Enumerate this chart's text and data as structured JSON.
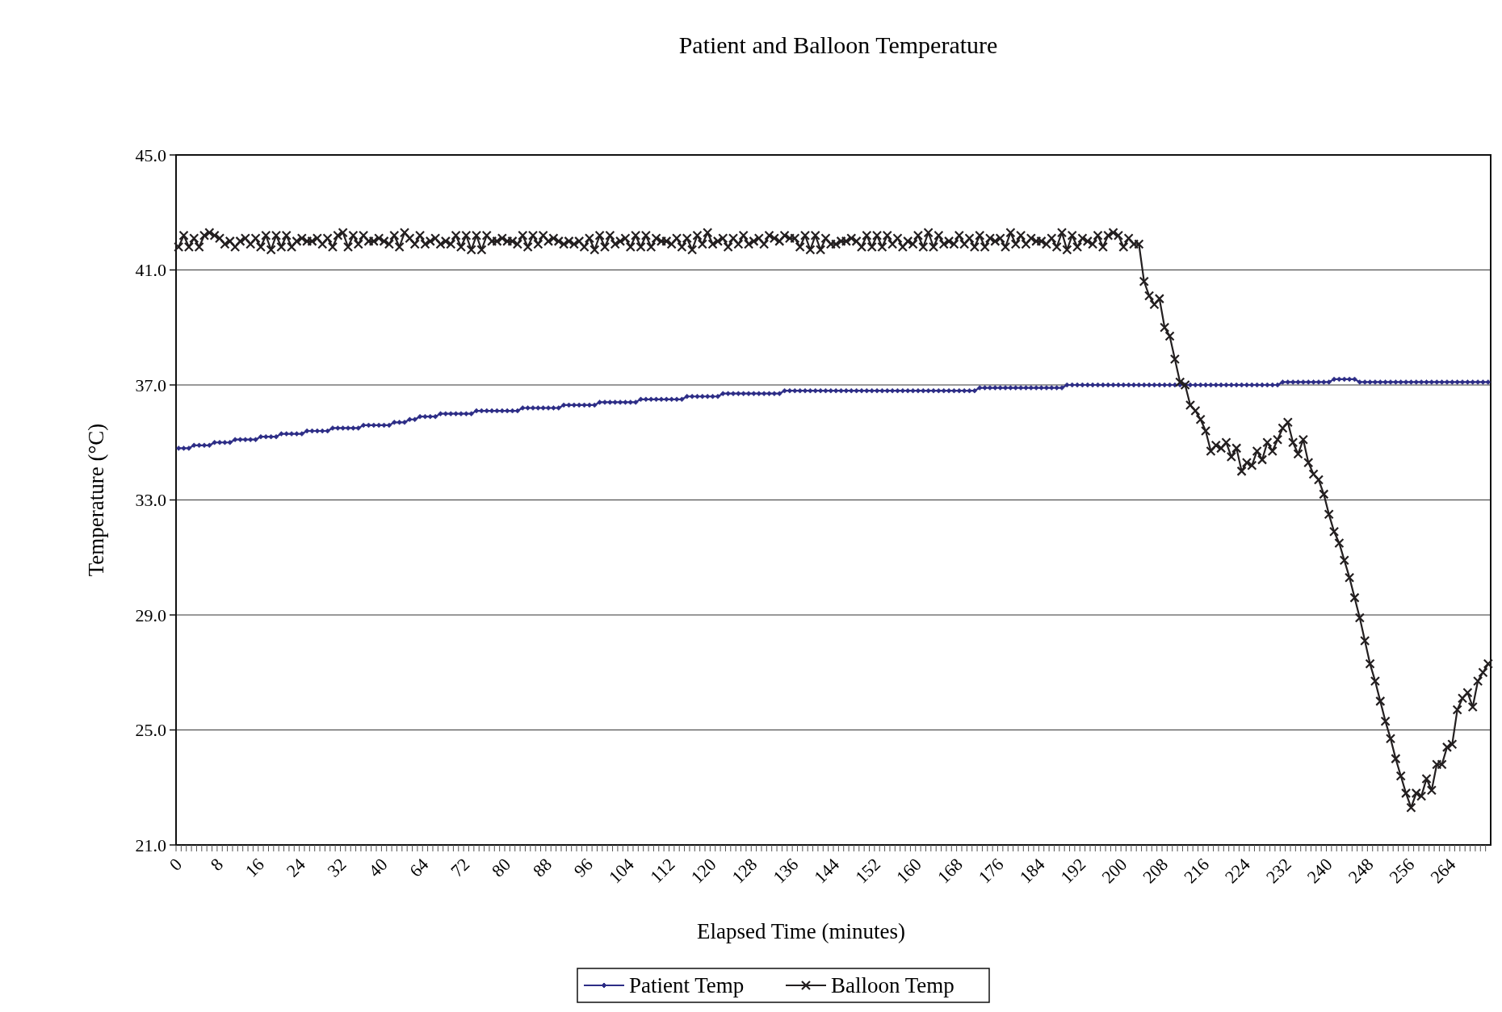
{
  "chart_data": {
    "type": "line",
    "title": "Patient and Balloon Temperature",
    "xlabel": "Elapsed Time (minutes)",
    "ylabel": "Temperature (°C)",
    "categories": [
      "0",
      null,
      null,
      null,
      null,
      null,
      null,
      null,
      "8",
      null,
      null,
      null,
      null,
      null,
      null,
      null,
      "16",
      null,
      null,
      null,
      null,
      null,
      null,
      null,
      "24",
      null,
      null,
      null,
      null,
      null,
      null,
      null,
      "32",
      null,
      null,
      null,
      null,
      null,
      null,
      null,
      "40",
      null,
      null,
      null,
      null,
      null,
      null,
      null,
      "64",
      null,
      null,
      null,
      null,
      null,
      null,
      null,
      "72",
      null,
      null,
      null,
      null,
      null,
      null,
      null,
      "80",
      null,
      null,
      null,
      null,
      null,
      null,
      null,
      "88",
      null,
      null,
      null,
      null,
      null,
      null,
      null,
      "96",
      null,
      null,
      null,
      null,
      null,
      null,
      null,
      "104",
      null,
      null,
      null,
      null,
      null,
      null,
      null,
      "112",
      null,
      null,
      null,
      null,
      null,
      null,
      null,
      "120",
      null,
      null,
      null,
      null,
      null,
      null,
      null,
      "128",
      null,
      null,
      null,
      null,
      null,
      null,
      null,
      "136",
      null,
      null,
      null,
      null,
      null,
      null,
      null,
      "144",
      null,
      null,
      null,
      null,
      null,
      null,
      null,
      "152",
      null,
      null,
      null,
      null,
      null,
      null,
      null,
      "160",
      null,
      null,
      null,
      null,
      null,
      null,
      null,
      "168",
      null,
      null,
      null,
      null,
      null,
      null,
      null,
      "176",
      null,
      null,
      null,
      null,
      null,
      null,
      null,
      "184",
      null,
      null,
      null,
      null,
      null,
      null,
      null,
      "192",
      null,
      null,
      null,
      null,
      null,
      null,
      null,
      "200",
      null,
      null,
      null,
      null,
      null,
      null,
      null,
      "208",
      null,
      null,
      null,
      null,
      null,
      null,
      null,
      "216",
      null,
      null,
      null,
      null,
      null,
      null,
      null,
      "224",
      null,
      null,
      null,
      null,
      null,
      null,
      null,
      "232",
      null,
      null,
      null,
      null,
      null,
      null,
      null,
      "240",
      null,
      null,
      null,
      null,
      null,
      null,
      null,
      "248",
      null,
      null,
      null,
      null,
      null,
      null,
      null,
      "256",
      null,
      null,
      null,
      null,
      null,
      null,
      null,
      "264",
      null,
      null,
      null,
      null,
      null,
      null,
      null
    ],
    "series": [
      {
        "name": "Patient Temp",
        "color": "#2d2d86",
        "marker": "diamond",
        "values": [
          34.8,
          34.8,
          34.8,
          34.9,
          34.9,
          34.9,
          34.9,
          35.0,
          35.0,
          35.0,
          35.0,
          35.1,
          35.1,
          35.1,
          35.1,
          35.1,
          35.2,
          35.2,
          35.2,
          35.2,
          35.3,
          35.3,
          35.3,
          35.3,
          35.3,
          35.4,
          35.4,
          35.4,
          35.4,
          35.4,
          35.5,
          35.5,
          35.5,
          35.5,
          35.5,
          35.5,
          35.6,
          35.6,
          35.6,
          35.6,
          35.6,
          35.6,
          35.7,
          35.7,
          35.7,
          35.8,
          35.8,
          35.9,
          35.9,
          35.9,
          35.9,
          36.0,
          36.0,
          36.0,
          36.0,
          36.0,
          36.0,
          36.0,
          36.1,
          36.1,
          36.1,
          36.1,
          36.1,
          36.1,
          36.1,
          36.1,
          36.1,
          36.2,
          36.2,
          36.2,
          36.2,
          36.2,
          36.2,
          36.2,
          36.2,
          36.3,
          36.3,
          36.3,
          36.3,
          36.3,
          36.3,
          36.3,
          36.4,
          36.4,
          36.4,
          36.4,
          36.4,
          36.4,
          36.4,
          36.4,
          36.5,
          36.5,
          36.5,
          36.5,
          36.5,
          36.5,
          36.5,
          36.5,
          36.5,
          36.6,
          36.6,
          36.6,
          36.6,
          36.6,
          36.6,
          36.6,
          36.7,
          36.7,
          36.7,
          36.7,
          36.7,
          36.7,
          36.7,
          36.7,
          36.7,
          36.7,
          36.7,
          36.7,
          36.8,
          36.8,
          36.8,
          36.8,
          36.8,
          36.8,
          36.8,
          36.8,
          36.8,
          36.8,
          36.8,
          36.8,
          36.8,
          36.8,
          36.8,
          36.8,
          36.8,
          36.8,
          36.8,
          36.8,
          36.8,
          36.8,
          36.8,
          36.8,
          36.8,
          36.8,
          36.8,
          36.8,
          36.8,
          36.8,
          36.8,
          36.8,
          36.8,
          36.8,
          36.8,
          36.8,
          36.8,
          36.8,
          36.9,
          36.9,
          36.9,
          36.9,
          36.9,
          36.9,
          36.9,
          36.9,
          36.9,
          36.9,
          36.9,
          36.9,
          36.9,
          36.9,
          36.9,
          36.9,
          36.9,
          37.0,
          37.0,
          37.0,
          37.0,
          37.0,
          37.0,
          37.0,
          37.0,
          37.0,
          37.0,
          37.0,
          37.0,
          37.0,
          37.0,
          37.0,
          37.0,
          37.0,
          37.0,
          37.0,
          37.0,
          37.0,
          37.0,
          37.0,
          37.0,
          37.0,
          37.0,
          37.0,
          37.0,
          37.0,
          37.0,
          37.0,
          37.0,
          37.0,
          37.0,
          37.0,
          37.0,
          37.0,
          37.0,
          37.0,
          37.0,
          37.0,
          37.0,
          37.1,
          37.1,
          37.1,
          37.1,
          37.1,
          37.1,
          37.1,
          37.1,
          37.1,
          37.1,
          37.2,
          37.2,
          37.2,
          37.2,
          37.2,
          37.1,
          37.1,
          37.1,
          37.1,
          37.1,
          37.1,
          37.1,
          37.1,
          37.1,
          37.1,
          37.1,
          37.1,
          37.1,
          37.1,
          37.1,
          37.1,
          37.1,
          37.1,
          37.1,
          37.1,
          37.1,
          37.1,
          37.1,
          37.1,
          37.1,
          37.1
        ]
      },
      {
        "name": "Balloon Temp",
        "color": "#231f20",
        "marker": "cross",
        "values": [
          41.8,
          42.2,
          41.8,
          42.1,
          41.8,
          42.2,
          42.3,
          42.2,
          42.1,
          41.9,
          42.0,
          41.8,
          42.0,
          42.1,
          41.9,
          42.1,
          41.8,
          42.2,
          41.7,
          42.2,
          41.8,
          42.2,
          41.8,
          42.0,
          42.1,
          42.0,
          42.0,
          42.1,
          41.9,
          42.1,
          41.8,
          42.2,
          42.3,
          41.8,
          42.2,
          41.9,
          42.2,
          42.0,
          42.0,
          42.1,
          42.0,
          41.9,
          42.2,
          41.8,
          42.3,
          42.1,
          41.9,
          42.2,
          41.9,
          42.0,
          42.1,
          41.9,
          42.0,
          41.9,
          42.2,
          41.8,
          42.2,
          41.7,
          42.2,
          41.7,
          42.2,
          42.0,
          42.0,
          42.1,
          42.0,
          42.0,
          41.9,
          42.2,
          41.8,
          42.2,
          41.9,
          42.2,
          42.0,
          42.1,
          42.0,
          41.9,
          42.0,
          41.9,
          42.0,
          41.8,
          42.1,
          41.7,
          42.2,
          41.8,
          42.2,
          41.9,
          42.0,
          42.1,
          41.8,
          42.2,
          41.8,
          42.2,
          41.8,
          42.1,
          42.0,
          42.0,
          41.9,
          42.1,
          41.8,
          42.1,
          41.7,
          42.2,
          41.9,
          42.3,
          41.9,
          42.0,
          42.1,
          41.8,
          42.1,
          41.9,
          42.2,
          41.9,
          42.0,
          42.1,
          41.9,
          42.2,
          42.1,
          42.0,
          42.2,
          42.1,
          42.1,
          41.8,
          42.2,
          41.7,
          42.2,
          41.7,
          42.1,
          41.9,
          41.9,
          42.0,
          42.0,
          42.1,
          42.0,
          41.8,
          42.2,
          41.8,
          42.2,
          41.8,
          42.2,
          41.9,
          42.1,
          41.8,
          42.0,
          41.9,
          42.2,
          41.8,
          42.3,
          41.8,
          42.2,
          41.9,
          42.0,
          41.9,
          42.2,
          41.9,
          42.1,
          41.8,
          42.2,
          41.8,
          42.1,
          42.0,
          42.1,
          41.8,
          42.3,
          41.9,
          42.2,
          41.9,
          42.1,
          42.0,
          42.0,
          41.9,
          42.1,
          41.8,
          42.3,
          41.7,
          42.2,
          41.8,
          42.1,
          42.0,
          41.9,
          42.2,
          41.8,
          42.2,
          42.3,
          42.2,
          41.8,
          42.1,
          41.9,
          41.9,
          40.6,
          40.1,
          39.8,
          40.0,
          39.0,
          38.7,
          37.9,
          37.1,
          37.0,
          36.3,
          36.1,
          35.8,
          35.4,
          34.7,
          34.9,
          34.8,
          35.0,
          34.5,
          34.8,
          34.0,
          34.3,
          34.2,
          34.7,
          34.4,
          35.0,
          34.7,
          35.1,
          35.5,
          35.7,
          35.0,
          34.6,
          35.1,
          34.3,
          33.9,
          33.7,
          33.2,
          32.5,
          31.9,
          31.5,
          30.9,
          30.3,
          29.6,
          28.9,
          28.1,
          27.3,
          26.7,
          26.0,
          25.3,
          24.7,
          24.0,
          23.4,
          22.8,
          22.3,
          22.8,
          22.7,
          23.3,
          22.9,
          23.8,
          23.8,
          24.4,
          24.5,
          25.7,
          26.1,
          26.3,
          25.8,
          26.7,
          27.0,
          27.3
        ]
      }
    ],
    "ylim": [
      21,
      45
    ],
    "yticks": [
      {
        "value": 21,
        "label": "21.0"
      },
      {
        "value": 25,
        "label": "25.0"
      },
      {
        "value": 29,
        "label": "29.0"
      },
      {
        "value": 33,
        "label": "33.0"
      },
      {
        "value": 37,
        "label": "37.0"
      },
      {
        "value": 41,
        "label": "41.0"
      },
      {
        "value": 45,
        "label": "45.0"
      }
    ],
    "grid": "y",
    "legend": "bottom"
  }
}
